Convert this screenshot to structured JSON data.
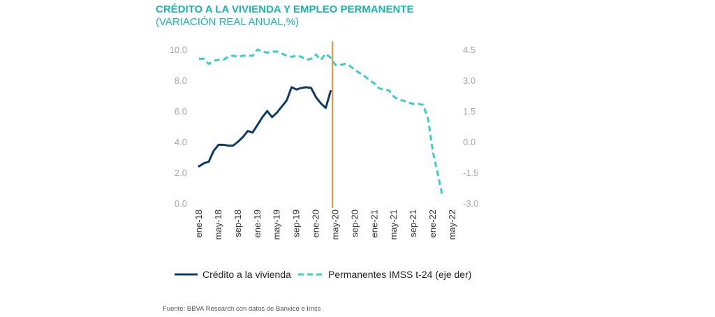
{
  "title": "CRÉDITO A LA VIVIENDA Y EMPLEO PERMANENTE",
  "subtitle": "(VARIACIÓN REAL ANUAL,%)",
  "source": "Fuente: BBVA Research con datos de Banxico e Imss",
  "chart_data": {
    "type": "line",
    "title": "CRÉDITO A LA VIVIENDA Y EMPLEO PERMANENTE",
    "subtitle": "(VARIACIÓN REAL ANUAL,%)",
    "x_start": "2018-01",
    "x_end": "2022-05",
    "x_tick_labels": [
      "ene-18",
      "may-18",
      "sep-18",
      "ene-19",
      "may-19",
      "sep-19",
      "ene-20",
      "may-20",
      "sep-20",
      "ene-21",
      "may-21",
      "sep-21",
      "ene-22",
      "may-22"
    ],
    "ylim_left": [
      0,
      10
    ],
    "yticks_left": [
      "0.0",
      "2.0",
      "4.0",
      "6.0",
      "8.0",
      "10.0"
    ],
    "ylim_right": [
      -3,
      4.5
    ],
    "yticks_right": [
      "-3.0",
      "-1.5",
      "0.0",
      "1.5",
      "3.0",
      "4.5"
    ],
    "vertical_marker": {
      "month_index": 27.4,
      "color": "#f08a2c"
    },
    "legend_position": "bottom",
    "series": [
      {
        "name": "Crédito a la vivienda",
        "axis": "left",
        "style": "solid",
        "color": "#0a3d6b",
        "values": [
          2.4,
          2.6,
          2.7,
          3.4,
          3.8,
          3.8,
          3.75,
          3.75,
          4.0,
          4.3,
          4.7,
          4.6,
          5.1,
          5.6,
          6.0,
          5.6,
          5.9,
          6.3,
          6.7,
          7.55,
          7.4,
          7.5,
          7.55,
          7.5,
          6.9,
          6.5,
          6.2,
          7.3
        ]
      },
      {
        "name": "Permanentes IMSS t-24 (eje der)",
        "axis": "right",
        "style": "dashed",
        "color": "#38cfc9",
        "values": [
          4.05,
          4.05,
          3.8,
          3.95,
          4.0,
          4.0,
          4.15,
          4.2,
          4.15,
          4.2,
          4.2,
          4.2,
          4.5,
          4.4,
          4.35,
          4.4,
          4.4,
          4.3,
          4.2,
          4.15,
          4.2,
          4.15,
          4.0,
          4.05,
          4.25,
          4.0,
          4.3,
          4.1,
          3.75,
          3.75,
          3.8,
          3.7,
          3.5,
          3.35,
          3.2,
          3.0,
          2.85,
          2.6,
          2.55,
          2.5,
          2.2,
          2.05,
          2.0,
          1.9,
          1.85,
          1.85,
          1.8,
          1.1,
          -0.5,
          -1.6,
          -2.7
        ]
      }
    ]
  }
}
